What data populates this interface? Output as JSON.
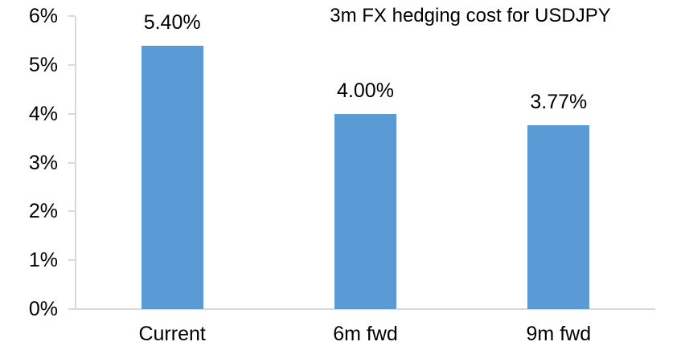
{
  "chart_data": {
    "type": "bar",
    "title": "3m FX hedging cost for USDJPY",
    "categories": [
      "Current",
      "6m fwd",
      "9m fwd"
    ],
    "values": [
      5.4,
      4.0,
      3.77
    ],
    "data_labels": [
      "5.40%",
      "4.00%",
      "3.77%"
    ],
    "xlabel": "",
    "ylabel": "",
    "ylim": [
      0,
      6
    ],
    "ytick_step": 1,
    "ytick_labels": [
      "0%",
      "1%",
      "2%",
      "3%",
      "4%",
      "5%",
      "6%"
    ],
    "grid": false,
    "legend": "none",
    "colors": {
      "bar": "#5b9bd5",
      "axis": "#d9d9d9",
      "text": "#000000",
      "background": "#ffffff"
    }
  }
}
